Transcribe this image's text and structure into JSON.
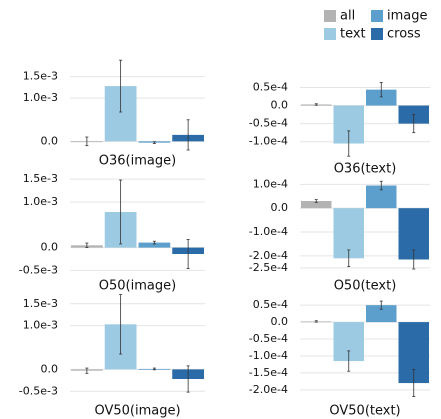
{
  "legend": [
    {
      "name": "all",
      "color": "#b3b3b3"
    },
    {
      "name": "text",
      "color": "#9ccae2"
    },
    {
      "name": "image",
      "color": "#5c9fcc"
    },
    {
      "name": "cross",
      "color": "#2b6ca8"
    }
  ],
  "chart_data": [
    {
      "type": "bar",
      "xlabel": "O36(image)",
      "values": [
        0.0,
        0.00128,
        -3e-05,
        0.00015
      ],
      "errors": [
        0.0001,
        0.0006,
        2e-05,
        0.00035
      ],
      "ylim": [
        -0.0002,
        0.002
      ],
      "yticks": [
        {
          "value": 0,
          "label": "0.0"
        },
        {
          "value": 0.001,
          "label": "1.0e-3"
        },
        {
          "value": 0.0015,
          "label": "1.5e-3"
        }
      ]
    },
    {
      "type": "bar",
      "xlabel": "O36(text)",
      "values": [
        3e-06,
        -0.000105,
        4.4e-05,
        -5e-05
      ],
      "errors": [
        2e-06,
        3.5e-05,
        2e-05,
        2.5e-05
      ],
      "ylim": [
        -0.000145,
        9e-05
      ],
      "yticks": [
        {
          "value": 5e-05,
          "label": "0.5e-4"
        },
        {
          "value": 0,
          "label": "0.0"
        },
        {
          "value": -5e-05,
          "label": "-0.5e-4"
        },
        {
          "value": -0.0001,
          "label": "-1.0e-4"
        }
      ]
    },
    {
      "type": "bar",
      "xlabel": "O50(image)",
      "values": [
        5e-05,
        0.00078,
        0.00011,
        -0.00014
      ],
      "errors": [
        5e-05,
        0.0007,
        3e-05,
        0.00032
      ],
      "ylim": [
        -0.0006,
        0.0017
      ],
      "yticks": [
        {
          "value": 0.0015,
          "label": "1.5e-3"
        },
        {
          "value": 0.001,
          "label": "1.0e-3"
        },
        {
          "value": 0,
          "label": "0.0"
        },
        {
          "value": -0.0005,
          "label": "-0.5e-3"
        }
      ]
    },
    {
      "type": "bar",
      "xlabel": "O50(text)",
      "values": [
        3e-05,
        -0.00021,
        9.5e-05,
        -0.000215
      ],
      "errors": [
        6e-06,
        3.5e-05,
        1.8e-05,
        4e-05
      ],
      "ylim": [
        -0.00028,
        0.00016
      ],
      "yticks": [
        {
          "value": 0.0001,
          "label": "1.0e-4"
        },
        {
          "value": 0,
          "label": "0.0"
        },
        {
          "value": -0.0001,
          "label": "-1.0e-4"
        },
        {
          "value": -0.0002,
          "label": "-2.0e-4"
        },
        {
          "value": -0.00025,
          "label": "-2.5e-4"
        }
      ]
    },
    {
      "type": "bar",
      "xlabel": "OV50(image)",
      "values": [
        -3e-05,
        0.00103,
        1e-05,
        -0.00022
      ],
      "errors": [
        6e-05,
        0.00068,
        2e-05,
        0.0003
      ],
      "ylim": [
        -0.0007,
        0.0017
      ],
      "yticks": [
        {
          "value": 0.0015,
          "label": "1.5e-3"
        },
        {
          "value": 0.001,
          "label": "1.0e-3"
        },
        {
          "value": 0,
          "label": "0.0"
        },
        {
          "value": -0.0005,
          "label": "-0.5e-3"
        }
      ]
    },
    {
      "type": "bar",
      "xlabel": "OV50(text)",
      "values": [
        2e-06,
        -0.000115,
        5e-05,
        -0.00018
      ],
      "errors": [
        2e-06,
        3e-05,
        1.2e-05,
        4e-05
      ],
      "ylim": [
        -0.00023,
        8e-05
      ],
      "yticks": [
        {
          "value": 5e-05,
          "label": "0.5e-4"
        },
        {
          "value": 0,
          "label": "0.0"
        },
        {
          "value": -5e-05,
          "label": "-0.5e-4"
        },
        {
          "value": -0.0001,
          "label": "-1.0e-4"
        },
        {
          "value": -0.00015,
          "label": "-1.5e-4"
        },
        {
          "value": -0.0002,
          "label": "-2.0e-4"
        }
      ]
    }
  ]
}
